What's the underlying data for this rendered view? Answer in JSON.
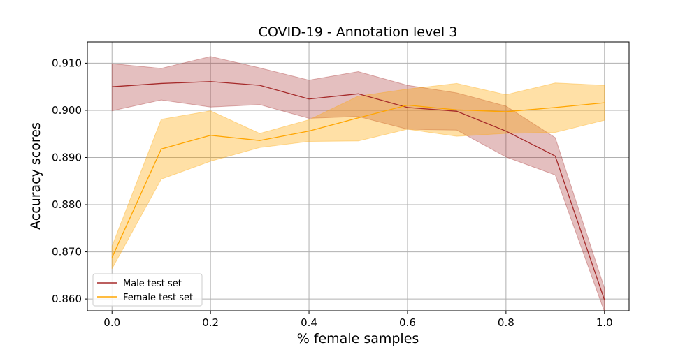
{
  "chart_data": {
    "type": "line",
    "title": "COVID-19 - Annotation level 3",
    "xlabel": "% female samples",
    "ylabel": "Accuracy scores",
    "x": [
      0.0,
      0.1,
      0.2,
      0.3,
      0.4,
      0.5,
      0.6,
      0.7,
      0.8,
      0.9,
      1.0
    ],
    "xlim": [
      -0.05,
      1.05
    ],
    "ylim": [
      0.8575,
      0.9145
    ],
    "xticks": [
      0.0,
      0.2,
      0.4,
      0.6,
      0.8,
      1.0
    ],
    "xtick_labels": [
      "0.0",
      "0.2",
      "0.4",
      "0.6",
      "0.8",
      "1.0"
    ],
    "yticks": [
      0.86,
      0.87,
      0.88,
      0.89,
      0.9,
      0.91
    ],
    "ytick_labels": [
      "0.860",
      "0.870",
      "0.880",
      "0.890",
      "0.900",
      "0.910"
    ],
    "grid": true,
    "legend_position": "lower-left",
    "series": [
      {
        "name": "Male test set",
        "color": "#a52a2a",
        "band_color": "#a52a2a",
        "values": [
          0.905,
          0.9057,
          0.9061,
          0.9053,
          0.9024,
          0.9035,
          0.9006,
          0.8998,
          0.8956,
          0.8903,
          0.8598
        ],
        "lower": [
          0.8999,
          0.9022,
          0.9007,
          0.9012,
          0.8983,
          0.8987,
          0.896,
          0.8958,
          0.8901,
          0.8863,
          0.8573
        ],
        "upper": [
          0.9099,
          0.9089,
          0.9114,
          0.909,
          0.9064,
          0.9082,
          0.9053,
          0.9037,
          0.9009,
          0.8942,
          0.8623
        ]
      },
      {
        "name": "Female test set",
        "color": "#ffa500",
        "band_color": "#ffa500",
        "values": [
          0.8688,
          0.8918,
          0.8947,
          0.8936,
          0.8956,
          0.8984,
          0.9011,
          0.9001,
          0.8997,
          0.9006,
          0.9016
        ],
        "lower": [
          0.8664,
          0.8854,
          0.8892,
          0.8921,
          0.8934,
          0.8935,
          0.896,
          0.8945,
          0.8951,
          0.8953,
          0.8979
        ],
        "upper": [
          0.8712,
          0.8981,
          0.8999,
          0.8951,
          0.898,
          0.903,
          0.9045,
          0.9057,
          0.9033,
          0.9058,
          0.9053
        ]
      }
    ]
  }
}
